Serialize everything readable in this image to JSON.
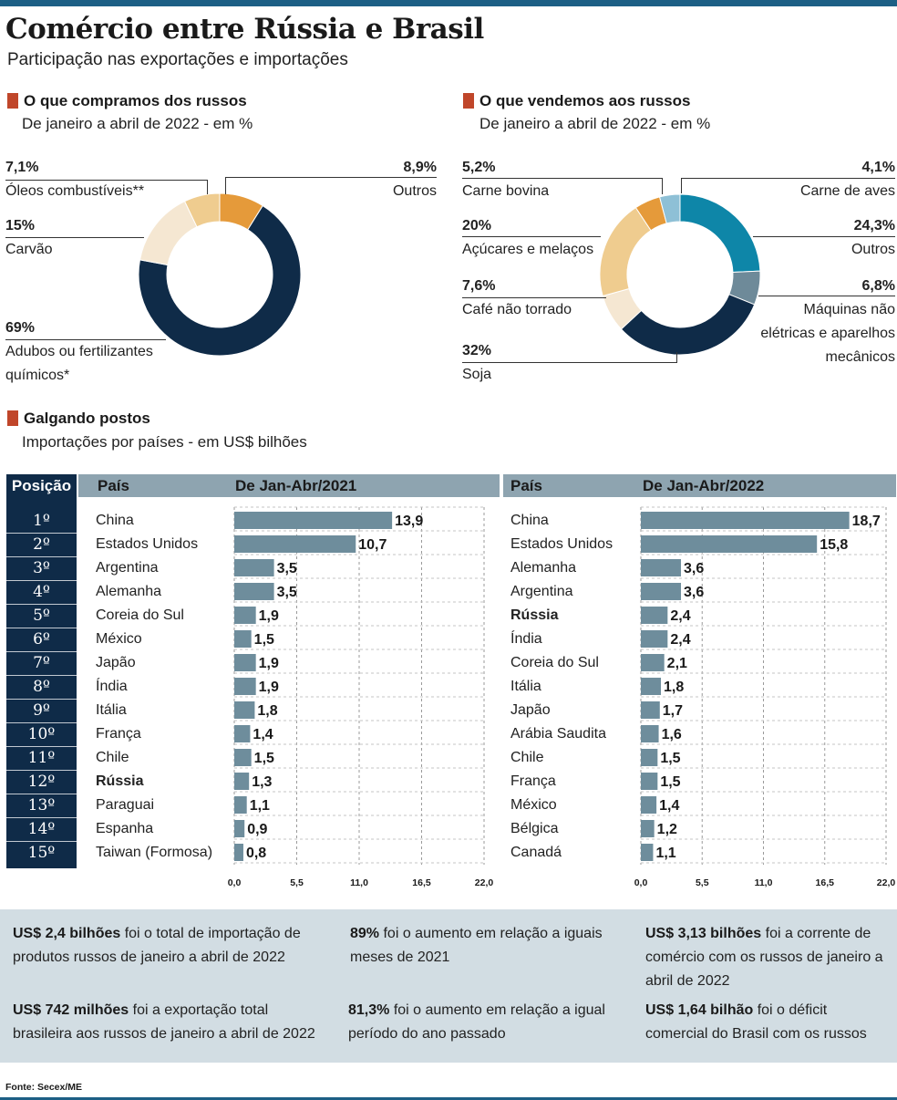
{
  "header": {
    "title": "Comércio entre Rússia e Brasil",
    "subtitle": "Participação nas exportações e importações"
  },
  "colors": {
    "dark_navy": "#0f2b48",
    "teal": "#0e86a8",
    "steel": "#6e8a99",
    "orange": "#e59a3a",
    "sand": "#efcc8f",
    "cream": "#f5e7d2",
    "light_blue": "#8ec0d6",
    "bar": "#6e8d9c",
    "header_bar": "#8ea4b0",
    "accent_red": "#c0462a",
    "stats_bg": "#d2dde3"
  },
  "chart_data": [
    {
      "type": "pie",
      "variant": "donut",
      "title": "O que compramos dos russos",
      "subtitle": "De janeiro a abril de 2022 - em %",
      "slices": [
        {
          "label": "Outros",
          "value": 8.9,
          "display": "8,9%",
          "color": "#e59a3a"
        },
        {
          "label": "Adubos ou fertilizantes químicos*",
          "value": 69,
          "display": "69%",
          "color": "#0f2b48"
        },
        {
          "label": "Carvão",
          "value": 15,
          "display": "15%",
          "color": "#f5e7d2"
        },
        {
          "label": "Óleos combustíveis**",
          "value": 7.1,
          "display": "7,1%",
          "color": "#efcc8f"
        }
      ]
    },
    {
      "type": "pie",
      "variant": "donut",
      "title": "O que vendemos aos russos",
      "subtitle": "De janeiro a abril de 2022 - em %",
      "slices": [
        {
          "label": "Outros",
          "value": 24.3,
          "display": "24,3%",
          "color": "#0e86a8"
        },
        {
          "label": "Máquinas não elétricas e aparelhos mecânicos",
          "value": 6.8,
          "display": "6,8%",
          "color": "#6e8a99"
        },
        {
          "label": "Soja",
          "value": 32,
          "display": "32%",
          "color": "#0f2b48"
        },
        {
          "label": "Café não torrado",
          "value": 7.6,
          "display": "7,6%",
          "color": "#f5e7d2"
        },
        {
          "label": "Açúcares e melaços",
          "value": 20,
          "display": "20%",
          "color": "#efcc8f"
        },
        {
          "label": "Carne bovina",
          "value": 5.2,
          "display": "5,2%",
          "color": "#e59a3a"
        },
        {
          "label": "Carne de aves",
          "value": 4.1,
          "display": "4,1%",
          "color": "#8ec0d6"
        }
      ]
    },
    {
      "type": "bar",
      "orientation": "horizontal",
      "title": "Galgando postos",
      "subtitle": "Importações por países - em US$ bilhões",
      "period": "De Jan-Abr/2021",
      "xlim": [
        0,
        22
      ],
      "ticks": [
        "0,0",
        "5,5",
        "11,0",
        "16,5",
        "22,0"
      ],
      "categories": [
        "China",
        "Estados Unidos",
        "Argentina",
        "Alemanha",
        "Coreia do Sul",
        "México",
        "Japão",
        "Índia",
        "Itália",
        "França",
        "Chile",
        "Rússia",
        "Paraguai",
        "Espanha",
        "Taiwan (Formosa)"
      ],
      "values": [
        13.9,
        10.7,
        3.5,
        3.5,
        1.9,
        1.5,
        1.9,
        1.9,
        1.8,
        1.4,
        1.5,
        1.3,
        1.1,
        0.9,
        0.8
      ],
      "labels": [
        "13,9",
        "10,7",
        "3,5",
        "3,5",
        "1,9",
        "1,5",
        "1,9",
        "1,9",
        "1,8",
        "1,4",
        "1,5",
        "1,3",
        "1,1",
        "0,9",
        "0,8"
      ],
      "highlight": "Rússia"
    },
    {
      "type": "bar",
      "orientation": "horizontal",
      "period": "De Jan-Abr/2022",
      "xlim": [
        0,
        22
      ],
      "ticks": [
        "0,0",
        "5,5",
        "11,0",
        "16,5",
        "22,0"
      ],
      "categories": [
        "China",
        "Estados Unidos",
        "Alemanha",
        "Argentina",
        "Rússia",
        "Índia",
        "Coreia do Sul",
        "Itália",
        "Japão",
        "Arábia Saudita",
        "Chile",
        "França",
        "México",
        "Bélgica",
        "Canadá"
      ],
      "values": [
        18.7,
        15.8,
        3.6,
        3.6,
        2.4,
        2.4,
        2.1,
        1.8,
        1.7,
        1.6,
        1.5,
        1.5,
        1.4,
        1.2,
        1.1
      ],
      "labels": [
        "18,7",
        "15,8",
        "3,6",
        "3,6",
        "2,4",
        "2,4",
        "2,1",
        "1,8",
        "1,7",
        "1,6",
        "1,5",
        "1,5",
        "1,4",
        "1,2",
        "1,1"
      ],
      "highlight": "Rússia"
    }
  ],
  "table": {
    "pos_header": "Posição",
    "country_header": "País",
    "positions": [
      "1º",
      "2º",
      "3º",
      "4º",
      "5º",
      "6º",
      "7º",
      "8º",
      "9º",
      "10º",
      "11º",
      "12º",
      "13º",
      "14º",
      "15º"
    ]
  },
  "stats": [
    {
      "strong": "US$ 2,4 bilhões",
      "text": " foi o total de importação de produtos russos de janeiro a abril de 2022"
    },
    {
      "strong": "89%",
      "text": " foi o aumento em relação a iguais meses de 2021"
    },
    {
      "strong": "US$ 3,13 bilhões",
      "text": " foi a corrente de comércio com os russos de janeiro a abril de 2022"
    },
    {
      "strong": "US$ 742 milhões",
      "text": " foi a exportação total brasileira aos russos de janeiro a abril de 2022"
    },
    {
      "strong": "81,3%",
      "text": " foi o aumento em relação a igual período do ano passado"
    },
    {
      "strong": "US$ 1,64 bilhão",
      "text": " foi o déficit comercial do Brasil com os russos"
    }
  ],
  "source": "Fonte: Secex/ME"
}
